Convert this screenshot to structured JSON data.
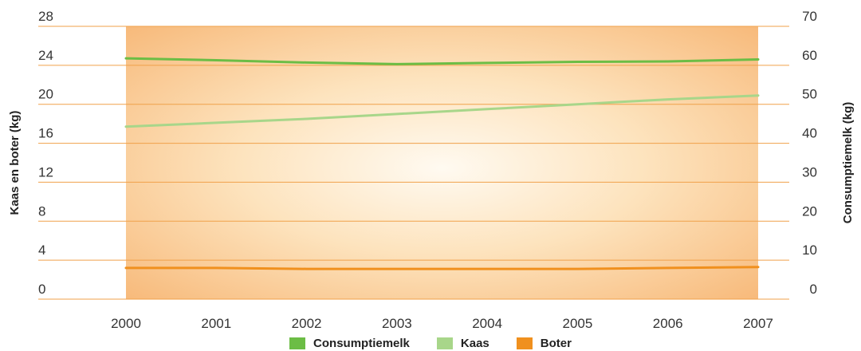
{
  "chart_data": {
    "type": "line",
    "x": [
      2000,
      2001,
      2002,
      2003,
      2004,
      2005,
      2006,
      2007
    ],
    "x_tick_labels": [
      "2000",
      "2001",
      "2002",
      "2003",
      "2004",
      "2005",
      "2006",
      "2007"
    ],
    "y_left": {
      "label": "Kaas en boter (kg)",
      "lim": [
        0,
        28
      ],
      "ticks": [
        "0",
        "4",
        "8",
        "12",
        "16",
        "20",
        "24",
        "28"
      ]
    },
    "y_right": {
      "label": "Consumptiemelk (kg)",
      "lim": [
        0,
        70
      ],
      "ticks": [
        "0",
        "10",
        "20",
        "30",
        "40",
        "50",
        "60",
        "70"
      ]
    },
    "series": [
      {
        "name": "Consumptiemelk",
        "axis": "right",
        "color": "#6cbd45",
        "values": [
          61.8,
          61.3,
          60.7,
          60.3,
          60.6,
          60.9,
          61.0,
          61.5
        ]
      },
      {
        "name": "Kaas",
        "axis": "left",
        "color": "#a8d68a",
        "values": [
          17.7,
          18.1,
          18.5,
          19.0,
          19.5,
          20.0,
          20.5,
          20.9
        ]
      },
      {
        "name": "Boter",
        "axis": "left",
        "color": "#f0901e",
        "values": [
          3.2,
          3.2,
          3.1,
          3.1,
          3.1,
          3.1,
          3.2,
          3.3
        ]
      }
    ],
    "grid": true,
    "legend_position": "bottom"
  }
}
